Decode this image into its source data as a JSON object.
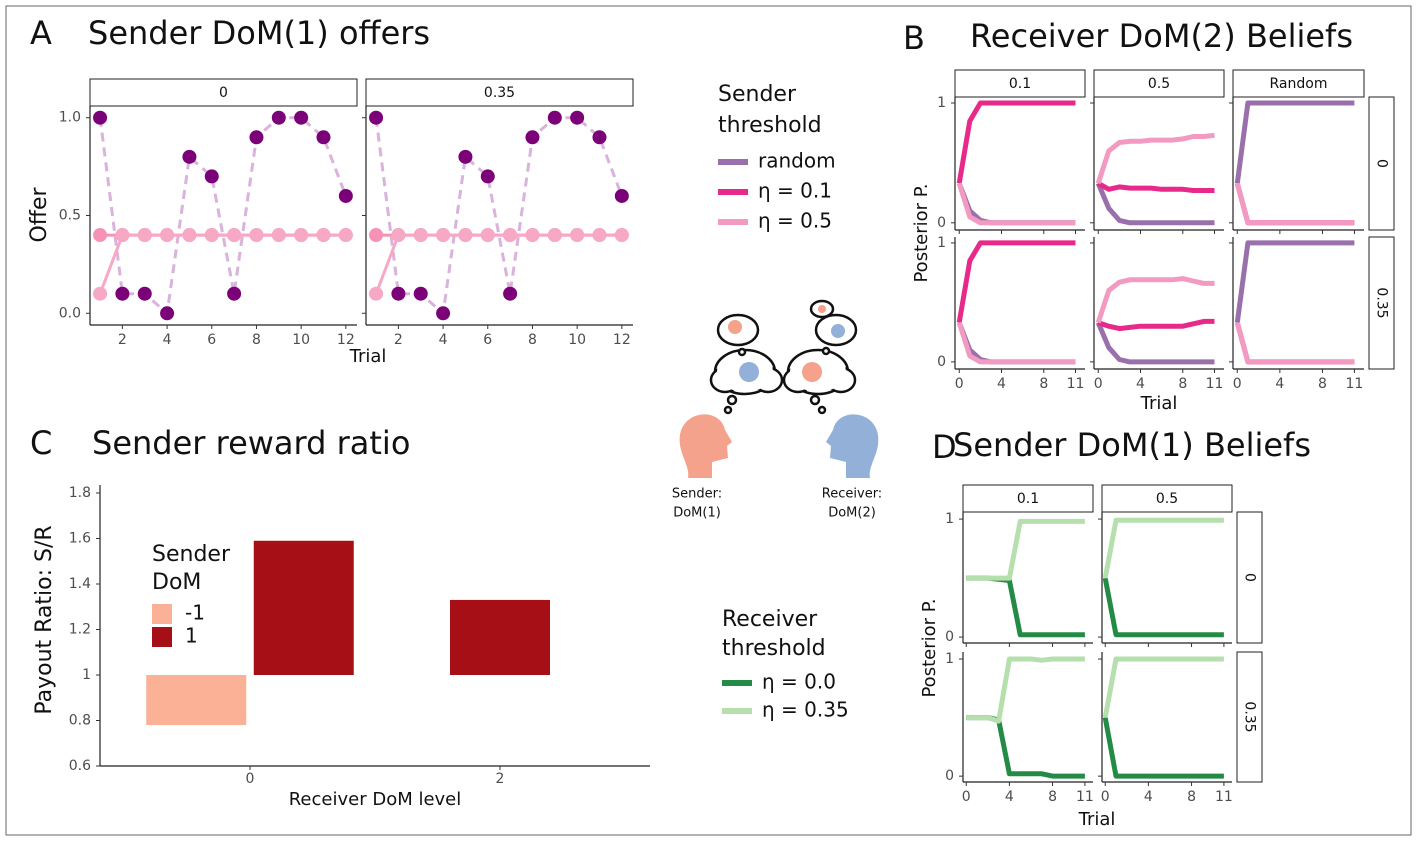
{
  "chart_data": [
    {
      "type": "line",
      "panel": "A",
      "title": "Sender DoM(1) offers",
      "x_label": "Trial",
      "y_label": "Offer",
      "col_facets": [
        "0",
        "0.35"
      ],
      "x": [
        1,
        2,
        3,
        4,
        5,
        6,
        7,
        8,
        9,
        10,
        11,
        12
      ],
      "xlim": [
        0.55,
        12.5
      ],
      "xticks": [
        2,
        4,
        6,
        8,
        10,
        12
      ],
      "ylim": [
        -0.06,
        1.06
      ],
      "yticks": [
        {
          "value": 0,
          "label": "0.0"
        },
        {
          "value": 0.5,
          "label": "0.5"
        },
        {
          "value": 1,
          "label": "1.0"
        }
      ],
      "legend_title": [
        "Sender",
        "threshold"
      ],
      "series": [
        {
          "name": "random",
          "color": "#9970ab",
          "line_color": "#d9b3dc",
          "marker_color": "#7a0177",
          "dash": true,
          "values": [
            [
              1,
              0.1,
              0.1,
              0,
              0.8,
              0.7,
              0.1,
              0.9,
              1,
              1,
              0.9,
              0.6
            ],
            [
              1,
              0.1,
              0.1,
              0,
              0.8,
              0.7,
              0.1,
              0.9,
              1,
              1,
              0.9,
              0.6
            ]
          ]
        },
        {
          "name": "η = 0.1",
          "color": "#e7298a",
          "line_color": "#f592b5",
          "marker_color": "#f592b5",
          "values": [
            [
              0.4,
              0.4,
              0.4,
              0.4,
              0.4,
              0.4,
              0.4,
              0.4,
              0.4,
              0.4,
              0.4,
              0.4
            ],
            [
              0.4,
              0.4,
              0.4,
              0.4,
              0.4,
              0.4,
              0.4,
              0.4,
              0.4,
              0.4,
              0.4,
              0.4
            ]
          ]
        },
        {
          "name": "η = 0.5",
          "color": "#f29ac1",
          "line_color": "#f7a8c4",
          "marker_color": "#f7a8c4",
          "values": [
            [
              0.1,
              0.4,
              0.4,
              0.4,
              0.4,
              0.4,
              0.4,
              0.4,
              0.4,
              0.4,
              0.4,
              0.4
            ],
            [
              0.1,
              0.4,
              0.4,
              0.4,
              0.4,
              0.4,
              0.4,
              0.4,
              0.4,
              0.4,
              0.4,
              0.4
            ]
          ]
        }
      ]
    },
    {
      "type": "line",
      "panel": "B",
      "title": "Receiver DoM(2) Beliefs",
      "x_label": "Trial",
      "y_label": "Posterior P.",
      "col_facets": [
        "0.1",
        "0.5",
        "Random"
      ],
      "row_facets": [
        "0",
        "0.35"
      ],
      "x": [
        0,
        1,
        2,
        3,
        4,
        5,
        6,
        7,
        8,
        9,
        10,
        11
      ],
      "xlim": [
        -0.4,
        11.9
      ],
      "xticks": [
        0,
        4,
        8,
        11
      ],
      "ylim": [
        -0.06,
        1.05
      ],
      "yticks": [
        0,
        1
      ],
      "series": [
        {
          "color": "#9970ab",
          "values": [
            [
              [
                0.33,
                0.1,
                0.02,
                0,
                0,
                0,
                0,
                0,
                0,
                0,
                0,
                0
              ],
              [
                0.33,
                0.12,
                0.02,
                0,
                0,
                0,
                0,
                0,
                0,
                0,
                0,
                0
              ],
              [
                0.33,
                1,
                1,
                1,
                1,
                1,
                1,
                1,
                1,
                1,
                1,
                1
              ]
            ],
            [
              [
                0.33,
                0.1,
                0.02,
                0,
                0,
                0,
                0,
                0,
                0,
                0,
                0,
                0
              ],
              [
                0.33,
                0.12,
                0.02,
                0,
                0,
                0,
                0,
                0,
                0,
                0,
                0,
                0
              ],
              [
                0.33,
                1,
                1,
                1,
                1,
                1,
                1,
                1,
                1,
                1,
                1,
                1
              ]
            ]
          ]
        },
        {
          "color": "#e7298a",
          "values": [
            [
              [
                0.33,
                0.85,
                1,
                1,
                1,
                1,
                1,
                1,
                1,
                1,
                1,
                1
              ],
              [
                0.33,
                0.28,
                0.3,
                0.29,
                0.29,
                0.29,
                0.28,
                0.28,
                0.28,
                0.27,
                0.27,
                0.27
              ],
              [
                0.33,
                0,
                0,
                0,
                0,
                0,
                0,
                0,
                0,
                0,
                0,
                0
              ]
            ],
            [
              [
                0.33,
                0.85,
                1,
                1,
                1,
                1,
                1,
                1,
                1,
                1,
                1,
                1
              ],
              [
                0.33,
                0.3,
                0.28,
                0.29,
                0.3,
                0.3,
                0.3,
                0.3,
                0.3,
                0.32,
                0.34,
                0.34
              ],
              [
                0.33,
                0,
                0,
                0,
                0,
                0,
                0,
                0,
                0,
                0,
                0,
                0
              ]
            ]
          ]
        },
        {
          "color": "#f29ac1",
          "values": [
            [
              [
                0.33,
                0.05,
                0,
                0,
                0,
                0,
                0,
                0,
                0,
                0,
                0,
                0
              ],
              [
                0.33,
                0.6,
                0.67,
                0.68,
                0.68,
                0.69,
                0.69,
                0.69,
                0.7,
                0.72,
                0.72,
                0.73
              ],
              [
                0.33,
                0,
                0,
                0,
                0,
                0,
                0,
                0,
                0,
                0,
                0,
                0
              ]
            ],
            [
              [
                0.33,
                0.05,
                0,
                0,
                0,
                0,
                0,
                0,
                0,
                0,
                0,
                0
              ],
              [
                0.33,
                0.6,
                0.67,
                0.69,
                0.69,
                0.69,
                0.69,
                0.69,
                0.7,
                0.68,
                0.66,
                0.66
              ],
              [
                0.33,
                0,
                0,
                0,
                0,
                0,
                0,
                0,
                0,
                0,
                0,
                0
              ]
            ]
          ]
        }
      ]
    },
    {
      "type": "bar",
      "panel": "C",
      "title": "Sender reward ratio",
      "x_label": "Receiver DoM level",
      "y_label": "Payout Ratio: S/R",
      "x": [
        0,
        2
      ],
      "xlim": [
        -1.2,
        3.2
      ],
      "xticks": [
        0,
        2
      ],
      "ylim": [
        0.6,
        1.8
      ],
      "yticks": [
        0.6,
        0.8,
        1,
        1.2,
        1.4,
        1.6,
        1.8
      ],
      "baseline": 1,
      "legend_title": [
        "Sender",
        "DoM"
      ],
      "series": [
        {
          "name": "-1",
          "color": "#fbb195",
          "values": [
            0.78,
            null
          ]
        },
        {
          "name": "1",
          "color": "#a50f15",
          "values": [
            1.59,
            1.33
          ]
        }
      ]
    },
    {
      "type": "line",
      "panel": "D",
      "title": "Sender DoM(1) Beliefs",
      "x_label": "Trial",
      "y_label": "Posterior P.",
      "col_facets": [
        "0.1",
        "0.5"
      ],
      "row_facets": [
        "0",
        "0.35"
      ],
      "x": [
        0,
        1,
        2,
        3,
        4,
        5,
        6,
        7,
        8,
        9,
        10,
        11
      ],
      "xlim": [
        -0.3,
        11.75
      ],
      "xticks": [
        0,
        4,
        8,
        11
      ],
      "ylim": [
        -0.05,
        1.06
      ],
      "yticks": [
        0,
        1
      ],
      "legend_title": [
        "Receiver",
        "threshold"
      ],
      "series": [
        {
          "name": "η = 0.0",
          "color": "#238b45",
          "values": [
            [
              [
                0.5,
                0.5,
                0.5,
                0.49,
                0.48,
                0.02,
                0.02,
                0.02,
                0.02,
                0.02,
                0.02,
                0.02
              ],
              [
                0.5,
                0.02,
                0.02,
                0.02,
                0.02,
                0.02,
                0.02,
                0.02,
                0.02,
                0.02,
                0.02,
                0.02
              ]
            ],
            [
              [
                0.5,
                0.5,
                0.5,
                0.48,
                0.02,
                0.02,
                0.02,
                0.02,
                0,
                0,
                0,
                0
              ],
              [
                0.5,
                0,
                0,
                0,
                0,
                0,
                0,
                0,
                0,
                0,
                0,
                0
              ]
            ]
          ]
        },
        {
          "name": "η = 0.35",
          "color": "#b5e0ad",
          "values": [
            [
              [
                0.5,
                0.5,
                0.5,
                0.5,
                0.5,
                0.98,
                0.98,
                0.98,
                0.98,
                0.98,
                0.98,
                0.98
              ],
              [
                0.5,
                0.99,
                0.99,
                0.99,
                0.99,
                0.99,
                0.99,
                0.99,
                0.99,
                0.99,
                0.99,
                0.99
              ]
            ],
            [
              [
                0.5,
                0.5,
                0.5,
                0.47,
                1,
                1,
                1,
                0.99,
                1,
                1,
                1,
                1
              ],
              [
                0.5,
                1,
                1,
                1,
                1,
                1,
                1,
                1,
                1,
                1,
                1,
                1
              ]
            ]
          ]
        }
      ]
    }
  ],
  "diagram": {
    "sender_label": [
      "Sender:",
      "DoM(1)"
    ],
    "receiver_label": [
      "Receiver:",
      "DoM(2)"
    ]
  }
}
